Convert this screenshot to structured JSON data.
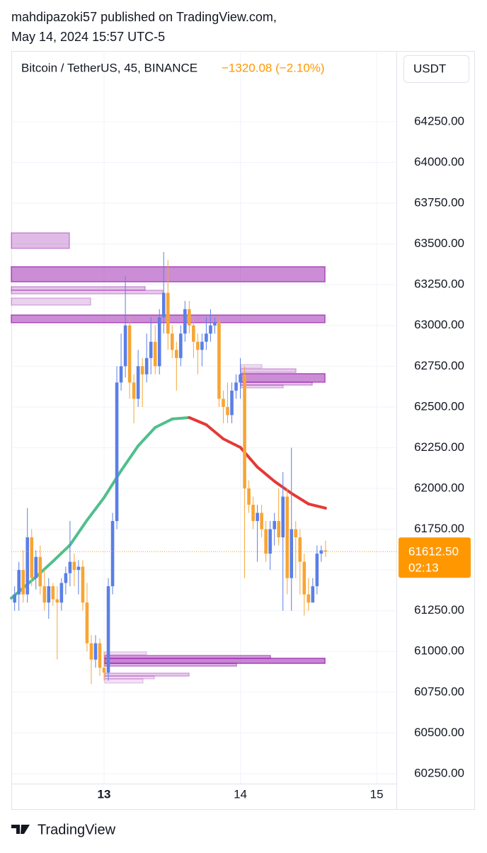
{
  "header": {
    "author_line": "mahdipazoki57 published on TradingView.com,",
    "date_line": "May 14, 2024 15:57 UTC-5"
  },
  "footer": {
    "brand": "TradingView"
  },
  "chart_data": {
    "type": "candlestick",
    "symbol": "Bitcoin / TetherUS, 45, BINANCE",
    "change": "−1320.08 (−2.10%)",
    "currency": "USDT",
    "up_color": "#5b7fe6",
    "down_color": "#f7a534",
    "xlim": [
      12.3195,
      15.145
    ],
    "xticks": [
      13,
      14,
      15
    ],
    "ylim": [
      60189,
      64684
    ],
    "yticks": [
      {
        "value": 60250,
        "label": "60250.00"
      },
      {
        "value": 60500,
        "label": "60500.00"
      },
      {
        "value": 60750,
        "label": "60750.00"
      },
      {
        "value": 61000,
        "label": "61000.00"
      },
      {
        "value": 61250,
        "label": "61250.00"
      },
      {
        "value": 61500,
        "label": "61500.00"
      },
      {
        "value": 61750,
        "label": "61750.00"
      },
      {
        "value": 62000,
        "label": "62000.00"
      },
      {
        "value": 62250,
        "label": "62250.00"
      },
      {
        "value": 62500,
        "label": "62500.00"
      },
      {
        "value": 62750,
        "label": "62750.00"
      },
      {
        "value": 63000,
        "label": "63000.00"
      },
      {
        "value": 63250,
        "label": "63250.00"
      },
      {
        "value": 63500,
        "label": "63500.00"
      },
      {
        "value": 63750,
        "label": "63750.00"
      },
      {
        "value": 64000,
        "label": "64000.00"
      },
      {
        "value": 64250,
        "label": "64250.00"
      }
    ],
    "grid": true,
    "x": [
      12.34375,
      12.375,
      12.40625,
      12.4375,
      12.46875,
      12.5,
      12.53125,
      12.5625,
      12.59375,
      12.625,
      12.65625,
      12.6875,
      12.71875,
      12.75,
      12.78125,
      12.8125,
      12.84375,
      12.875,
      12.90625,
      12.9375,
      12.96875,
      13,
      13.03125,
      13.0625,
      13.09375,
      13.125,
      13.15625,
      13.1875,
      13.21875,
      13.25,
      13.28125,
      13.3125,
      13.34375,
      13.375,
      13.40625,
      13.4375,
      13.46875,
      13.5,
      13.53125,
      13.5625,
      13.59375,
      13.625,
      13.65625,
      13.6875,
      13.71875,
      13.75,
      13.78125,
      13.8125,
      13.84375,
      13.875,
      13.90625,
      13.9375,
      13.96875,
      14,
      14.03125,
      14.0625,
      14.09375,
      14.125,
      14.15625,
      14.1875,
      14.21875,
      14.25,
      14.28125,
      14.3125,
      14.34375,
      14.375,
      14.40625,
      14.4375,
      14.46875,
      14.5,
      14.53125,
      14.5625,
      14.59375,
      14.625
    ],
    "open": [
      61300,
      61350,
      61500,
      61350,
      61700,
      61450,
      61580,
      61400,
      61300,
      61400,
      61320,
      61300,
      61420,
      61480,
      61550,
      61500,
      61520,
      61300,
      61050,
      60950,
      61050,
      60900,
      60870,
      61400,
      61800,
      62650,
      62750,
      63000,
      62650,
      62550,
      62750,
      62700,
      62800,
      62900,
      62750,
      63050,
      63200,
      62950,
      62850,
      62800,
      62950,
      63100,
      63000,
      62900,
      62850,
      62900,
      62950,
      63000,
      63020,
      62550,
      62500,
      62450,
      62600,
      62650,
      62700,
      62000,
      61900,
      61800,
      61850,
      61750,
      61600,
      61750,
      61800,
      61700,
      61950,
      61450,
      61750,
      61700,
      61550,
      61350,
      61300,
      61400,
      61600,
      61620
    ],
    "high": [
      61400,
      61550,
      61620,
      61880,
      61750,
      61620,
      61650,
      61500,
      61450,
      61420,
      61400,
      61450,
      61520,
      61800,
      61600,
      61560,
      61560,
      61420,
      61100,
      61100,
      61080,
      61000,
      61450,
      61850,
      62750,
      62950,
      63300,
      63050,
      62700,
      62850,
      62800,
      62950,
      63050,
      63000,
      63100,
      63450,
      63400,
      63000,
      62900,
      63000,
      63150,
      63150,
      63050,
      62950,
      62950,
      63050,
      63100,
      63050,
      63050,
      62600,
      62650,
      62650,
      62700,
      62800,
      62750,
      62050,
      61950,
      61900,
      61900,
      61800,
      61800,
      61850,
      62000,
      62100,
      62000,
      62250,
      61800,
      61750,
      61600,
      61450,
      61450,
      61650,
      61650,
      61680
    ],
    "low": [
      61250,
      61250,
      61300,
      61300,
      61400,
      61380,
      61350,
      61250,
      61200,
      61280,
      60950,
      61250,
      61350,
      61400,
      61400,
      61350,
      61250,
      61000,
      60800,
      60900,
      60850,
      60820,
      60820,
      61350,
      61750,
      62600,
      62680,
      62550,
      62400,
      62500,
      62500,
      62650,
      62700,
      62700,
      62700,
      62950,
      62850,
      62800,
      62600,
      62750,
      62900,
      62950,
      62800,
      62700,
      62750,
      62850,
      62900,
      62950,
      62500,
      62400,
      62400,
      62400,
      62550,
      62550,
      61450,
      61850,
      61750,
      61550,
      61700,
      61550,
      61500,
      61650,
      61650,
      61250,
      61350,
      61250,
      61450,
      61350,
      61220,
      61250,
      61300,
      61350,
      61550,
      61580
    ],
    "close": [
      61350,
      61500,
      61350,
      61700,
      61450,
      61580,
      61400,
      61300,
      61400,
      61320,
      61300,
      61420,
      61480,
      61550,
      61500,
      61520,
      61300,
      61050,
      60950,
      61050,
      60900,
      60870,
      61400,
      61800,
      62650,
      62750,
      63000,
      62650,
      62550,
      62750,
      62700,
      62800,
      62900,
      62750,
      63050,
      63200,
      62950,
      62850,
      62800,
      62950,
      63100,
      63000,
      62900,
      62850,
      62900,
      62950,
      63000,
      63020,
      62550,
      62500,
      62450,
      62600,
      62650,
      62700,
      62000,
      61900,
      61800,
      61850,
      61750,
      61600,
      61750,
      61800,
      61700,
      61950,
      61450,
      61750,
      61700,
      61550,
      61350,
      61300,
      61400,
      61600,
      61620,
      61612.5
    ],
    "ma": {
      "up_color": "#4fbf8c",
      "down_color": "#e53935",
      "x": [
        12.3195,
        12.5,
        12.625,
        12.75,
        12.875,
        13,
        13.125,
        13.25,
        13.375,
        13.5,
        13.625,
        13.75,
        13.875,
        14,
        14.125,
        14.25,
        14.375,
        14.5,
        14.625
      ],
      "values": [
        61327,
        61457,
        61553,
        61653,
        61805,
        61944,
        62109,
        62261,
        62374,
        62426,
        62435,
        62391,
        62304,
        62252,
        62131,
        62044,
        61970,
        61905,
        61879
      ]
    },
    "zone_color": "#9c27b0",
    "zones": [
      {
        "x0": 12.3195,
        "x1": 12.7455,
        "low": 63473,
        "high": 63568,
        "opacity": 0.45
      },
      {
        "x0": 12.3195,
        "x1": 14.6208,
        "low": 63268,
        "high": 63360,
        "opacity": 0.75
      },
      {
        "x0": 12.3195,
        "x1": 13.3013,
        "low": 63216,
        "high": 63238,
        "opacity": 0.4
      },
      {
        "x0": 12.3195,
        "x1": 13.4312,
        "low": 63194,
        "high": 63216,
        "opacity": 0.35
      },
      {
        "x0": 12.3195,
        "x1": 12.9013,
        "low": 63125,
        "high": 63168,
        "opacity": 0.3
      },
      {
        "x0": 12.3195,
        "x1": 14.6208,
        "low": 63017,
        "high": 63064,
        "opacity": 0.75
      },
      {
        "x0": 14.0026,
        "x1": 14.1584,
        "low": 62739,
        "high": 62760,
        "opacity": 0.2
      },
      {
        "x0": 14.0026,
        "x1": 14.4078,
        "low": 62712,
        "high": 62734,
        "opacity": 0.35
      },
      {
        "x0": 14.0026,
        "x1": 14.6208,
        "low": 62652,
        "high": 62704,
        "opacity": 0.75
      },
      {
        "x0": 14.0026,
        "x1": 14.5273,
        "low": 62634,
        "high": 62652,
        "opacity": 0.4
      },
      {
        "x0": 14.0026,
        "x1": 14.3143,
        "low": 62617,
        "high": 62634,
        "opacity": 0.3
      },
      {
        "x0": 13.0052,
        "x1": 13.3117,
        "low": 60980,
        "high": 60997,
        "opacity": 0.2
      },
      {
        "x0": 13.0052,
        "x1": 14.2208,
        "low": 60958,
        "high": 60975,
        "opacity": 0.6
      },
      {
        "x0": 13.0052,
        "x1": 14.6208,
        "low": 60927,
        "high": 60958,
        "opacity": 0.8
      },
      {
        "x0": 13.0052,
        "x1": 13.9714,
        "low": 60910,
        "high": 60927,
        "opacity": 0.5
      },
      {
        "x0": 13.0052,
        "x1": 13.6234,
        "low": 60849,
        "high": 60867,
        "opacity": 0.35
      },
      {
        "x0": 13.0052,
        "x1": 13.3688,
        "low": 60832,
        "high": 60849,
        "opacity": 0.25
      },
      {
        "x0": 13.0052,
        "x1": 13.2857,
        "low": 60806,
        "high": 60832,
        "opacity": 0.2
      }
    ],
    "last_price": {
      "value": 61612.5,
      "label": "61612.50",
      "countdown": "02:13",
      "color": "#ff9800"
    }
  }
}
